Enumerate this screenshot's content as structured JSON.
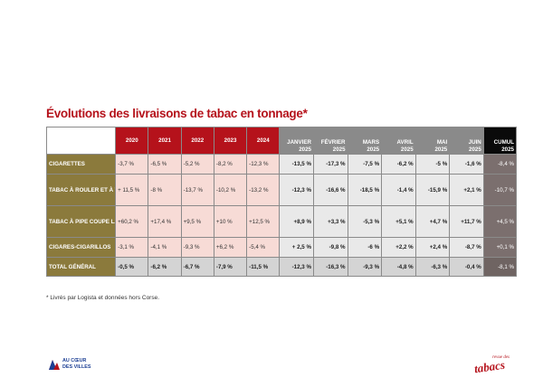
{
  "title": "Évolutions des livraisons de tabac en tonnage*",
  "table": {
    "years": [
      "2020",
      "2021",
      "2022",
      "2023",
      "2024"
    ],
    "months": [
      {
        "name": "JANVIER",
        "year": "2025"
      },
      {
        "name": "FÉVRIER",
        "year": "2025"
      },
      {
        "name": "MARS",
        "year": "2025"
      },
      {
        "name": "AVRIL",
        "year": "2025"
      },
      {
        "name": "MAI",
        "year": "2025"
      },
      {
        "name": "JUIN",
        "year": "2025"
      }
    ],
    "cumul": {
      "name": "CUMUL",
      "year": "2025"
    },
    "rows": [
      {
        "label": "CIGARETTES",
        "years": [
          "-3,7 %",
          "-6,5 %",
          "-5,2 %",
          "-8,2 %",
          "-12,3 %"
        ],
        "months": [
          "-13,5 %",
          "-17,3 %",
          "-7,5 %",
          "-6,2 %",
          "-5 %",
          "-1,6 %"
        ],
        "cumul": "-8,4 %"
      },
      {
        "label": "TABAC À ROULER ET À TUBER",
        "years": [
          "+ 11,5 %",
          "-8 %",
          "-13,7 %",
          "-10,2 %",
          "-13,2 %"
        ],
        "months": [
          "-12,3 %",
          "-16,6 %",
          "-18,5 %",
          "-1,4 %",
          "-15,9 %",
          "+2,1 %"
        ],
        "cumul": "-10,7 %"
      },
      {
        "label": "TABAC À PIPE COUPE LARGE ET À CHICHA",
        "years": [
          "+60,2 %",
          "+17,4 %",
          "+9,5 %",
          "+10 %",
          "+12,5 %"
        ],
        "months": [
          "+8,9 %",
          "+3,3 %",
          "-5,3 %",
          "+5,1 %",
          "+4,7 %",
          "+11,7 %"
        ],
        "cumul": "+4,5 %"
      },
      {
        "label": "CIGARES-CIGARILLOS",
        "years": [
          "-3,1 %",
          "-4,1 %",
          "-9,3 %",
          "+6,2 %",
          "-5,4 %"
        ],
        "months": [
          "+ 2,5 %",
          "-9,8 %",
          "-6 %",
          "+2,2 %",
          "+2,4 %",
          "-8,7 %"
        ],
        "cumul": "+0,1 %"
      },
      {
        "label": "TOTAL GÉNÉRAL",
        "years": [
          "-0,5 %",
          "-6,2 %",
          "-6,7 %",
          "-7,9 %",
          "-11,5 %"
        ],
        "months": [
          "-12,3 %",
          "-16,3 %",
          "-9,3 %",
          "-4,8 %",
          "-6,3 %",
          "-0,4 %"
        ],
        "cumul": "-8,1 %"
      }
    ]
  },
  "footnote": "* Livrés par Logista et données hors Corse.",
  "logo_left": {
    "line1": "AU CŒUR",
    "line2": "DES VILLES"
  },
  "logo_right": {
    "small": "revue des",
    "big": "tabacs"
  },
  "colors": {
    "accent": "#b5121b",
    "label_bg": "#8b7a3c",
    "month_header": "#8a8a8a",
    "cumul_header": "#0a0a0a",
    "year_cell": "#f7dbd6"
  }
}
